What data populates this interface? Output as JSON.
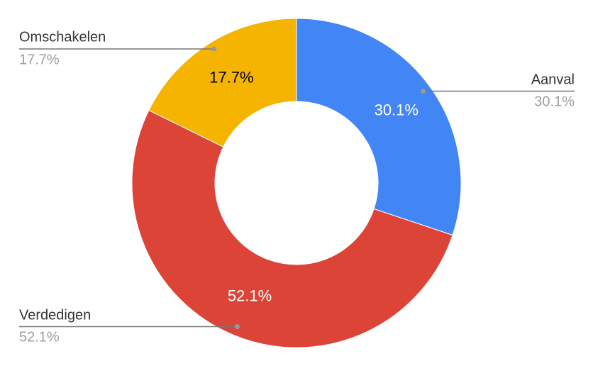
{
  "chart_data": {
    "type": "donut",
    "categories": [
      "Aanval",
      "Verdedigen",
      "Omschakelen"
    ],
    "values": [
      30.1,
      52.1,
      17.7
    ],
    "value_labels": [
      "30.1%",
      "52.1%",
      "17.7%"
    ],
    "colors": [
      "#4285f4",
      "#db4437",
      "#f4b400"
    ]
  }
}
